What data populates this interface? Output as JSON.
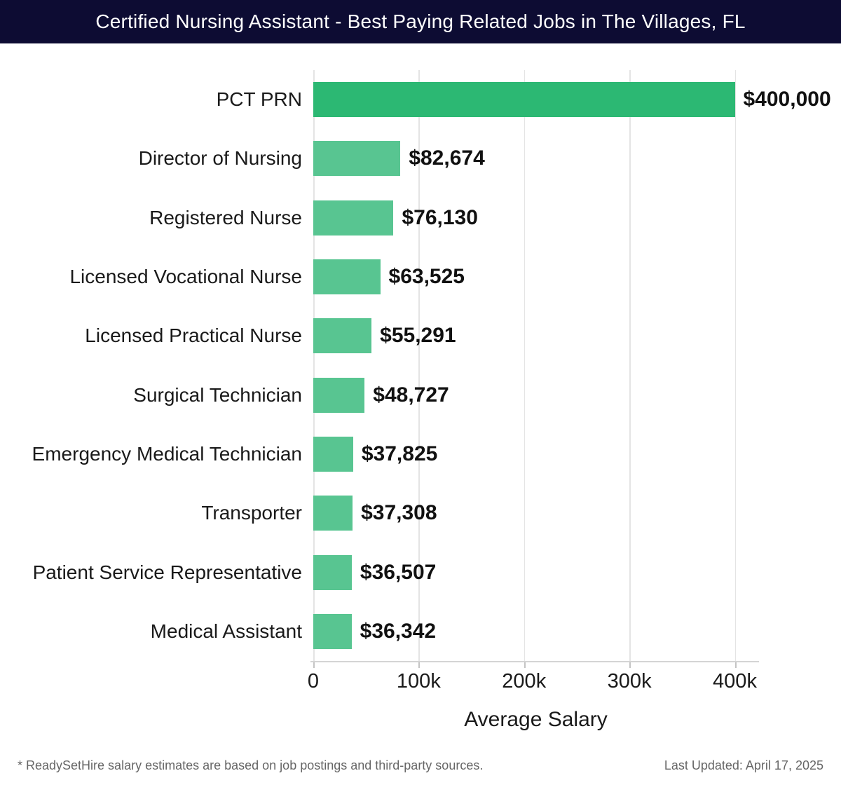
{
  "header": {
    "title": "Certified Nursing Assistant - Best Paying Related Jobs in The Villages, FL"
  },
  "chart_data": {
    "type": "bar",
    "orientation": "horizontal",
    "title": "Certified Nursing Assistant - Best Paying Related Jobs in The Villages, FL",
    "categories": [
      "PCT PRN",
      "Director of Nursing",
      "Registered Nurse",
      "Licensed Vocational Nurse",
      "Licensed Practical Nurse",
      "Surgical Technician",
      "Emergency Medical Technician",
      "Transporter",
      "Patient Service Representative",
      "Medical Assistant"
    ],
    "values": [
      400000,
      82674,
      76130,
      63525,
      55291,
      48727,
      37825,
      37308,
      36507,
      36342
    ],
    "value_labels": [
      "$400,000",
      "$82,674",
      "$76,130",
      "$63,525",
      "$55,291",
      "$48,727",
      "$37,825",
      "$37,308",
      "$36,507",
      "$36,342"
    ],
    "xlabel": "Average Salary",
    "ylabel": "",
    "xlim": [
      0,
      400000
    ],
    "grid": true,
    "legend": "none",
    "xticks": [
      {
        "value": 0,
        "label": "0"
      },
      {
        "value": 100000,
        "label": "100k"
      },
      {
        "value": 200000,
        "label": "200k"
      },
      {
        "value": 300000,
        "label": "300k"
      },
      {
        "value": 400000,
        "label": "400k"
      }
    ],
    "bar_colors": {
      "first": "#2cb873",
      "rest": "#58c591"
    }
  },
  "footer": {
    "note": "* ReadySetHire salary estimates are based on job postings and third-party sources.",
    "last_updated": "Last Updated: April 17, 2025"
  },
  "colors": {
    "header_bg": "#0d0c33",
    "title_text": "#ffffff",
    "grid": "#e4e4e4",
    "axis_line": "#d4d4d4",
    "tick": "#c4c4c4",
    "label_text": "#1a1a1a",
    "value_text": "#111111",
    "footer_text": "#666666"
  }
}
